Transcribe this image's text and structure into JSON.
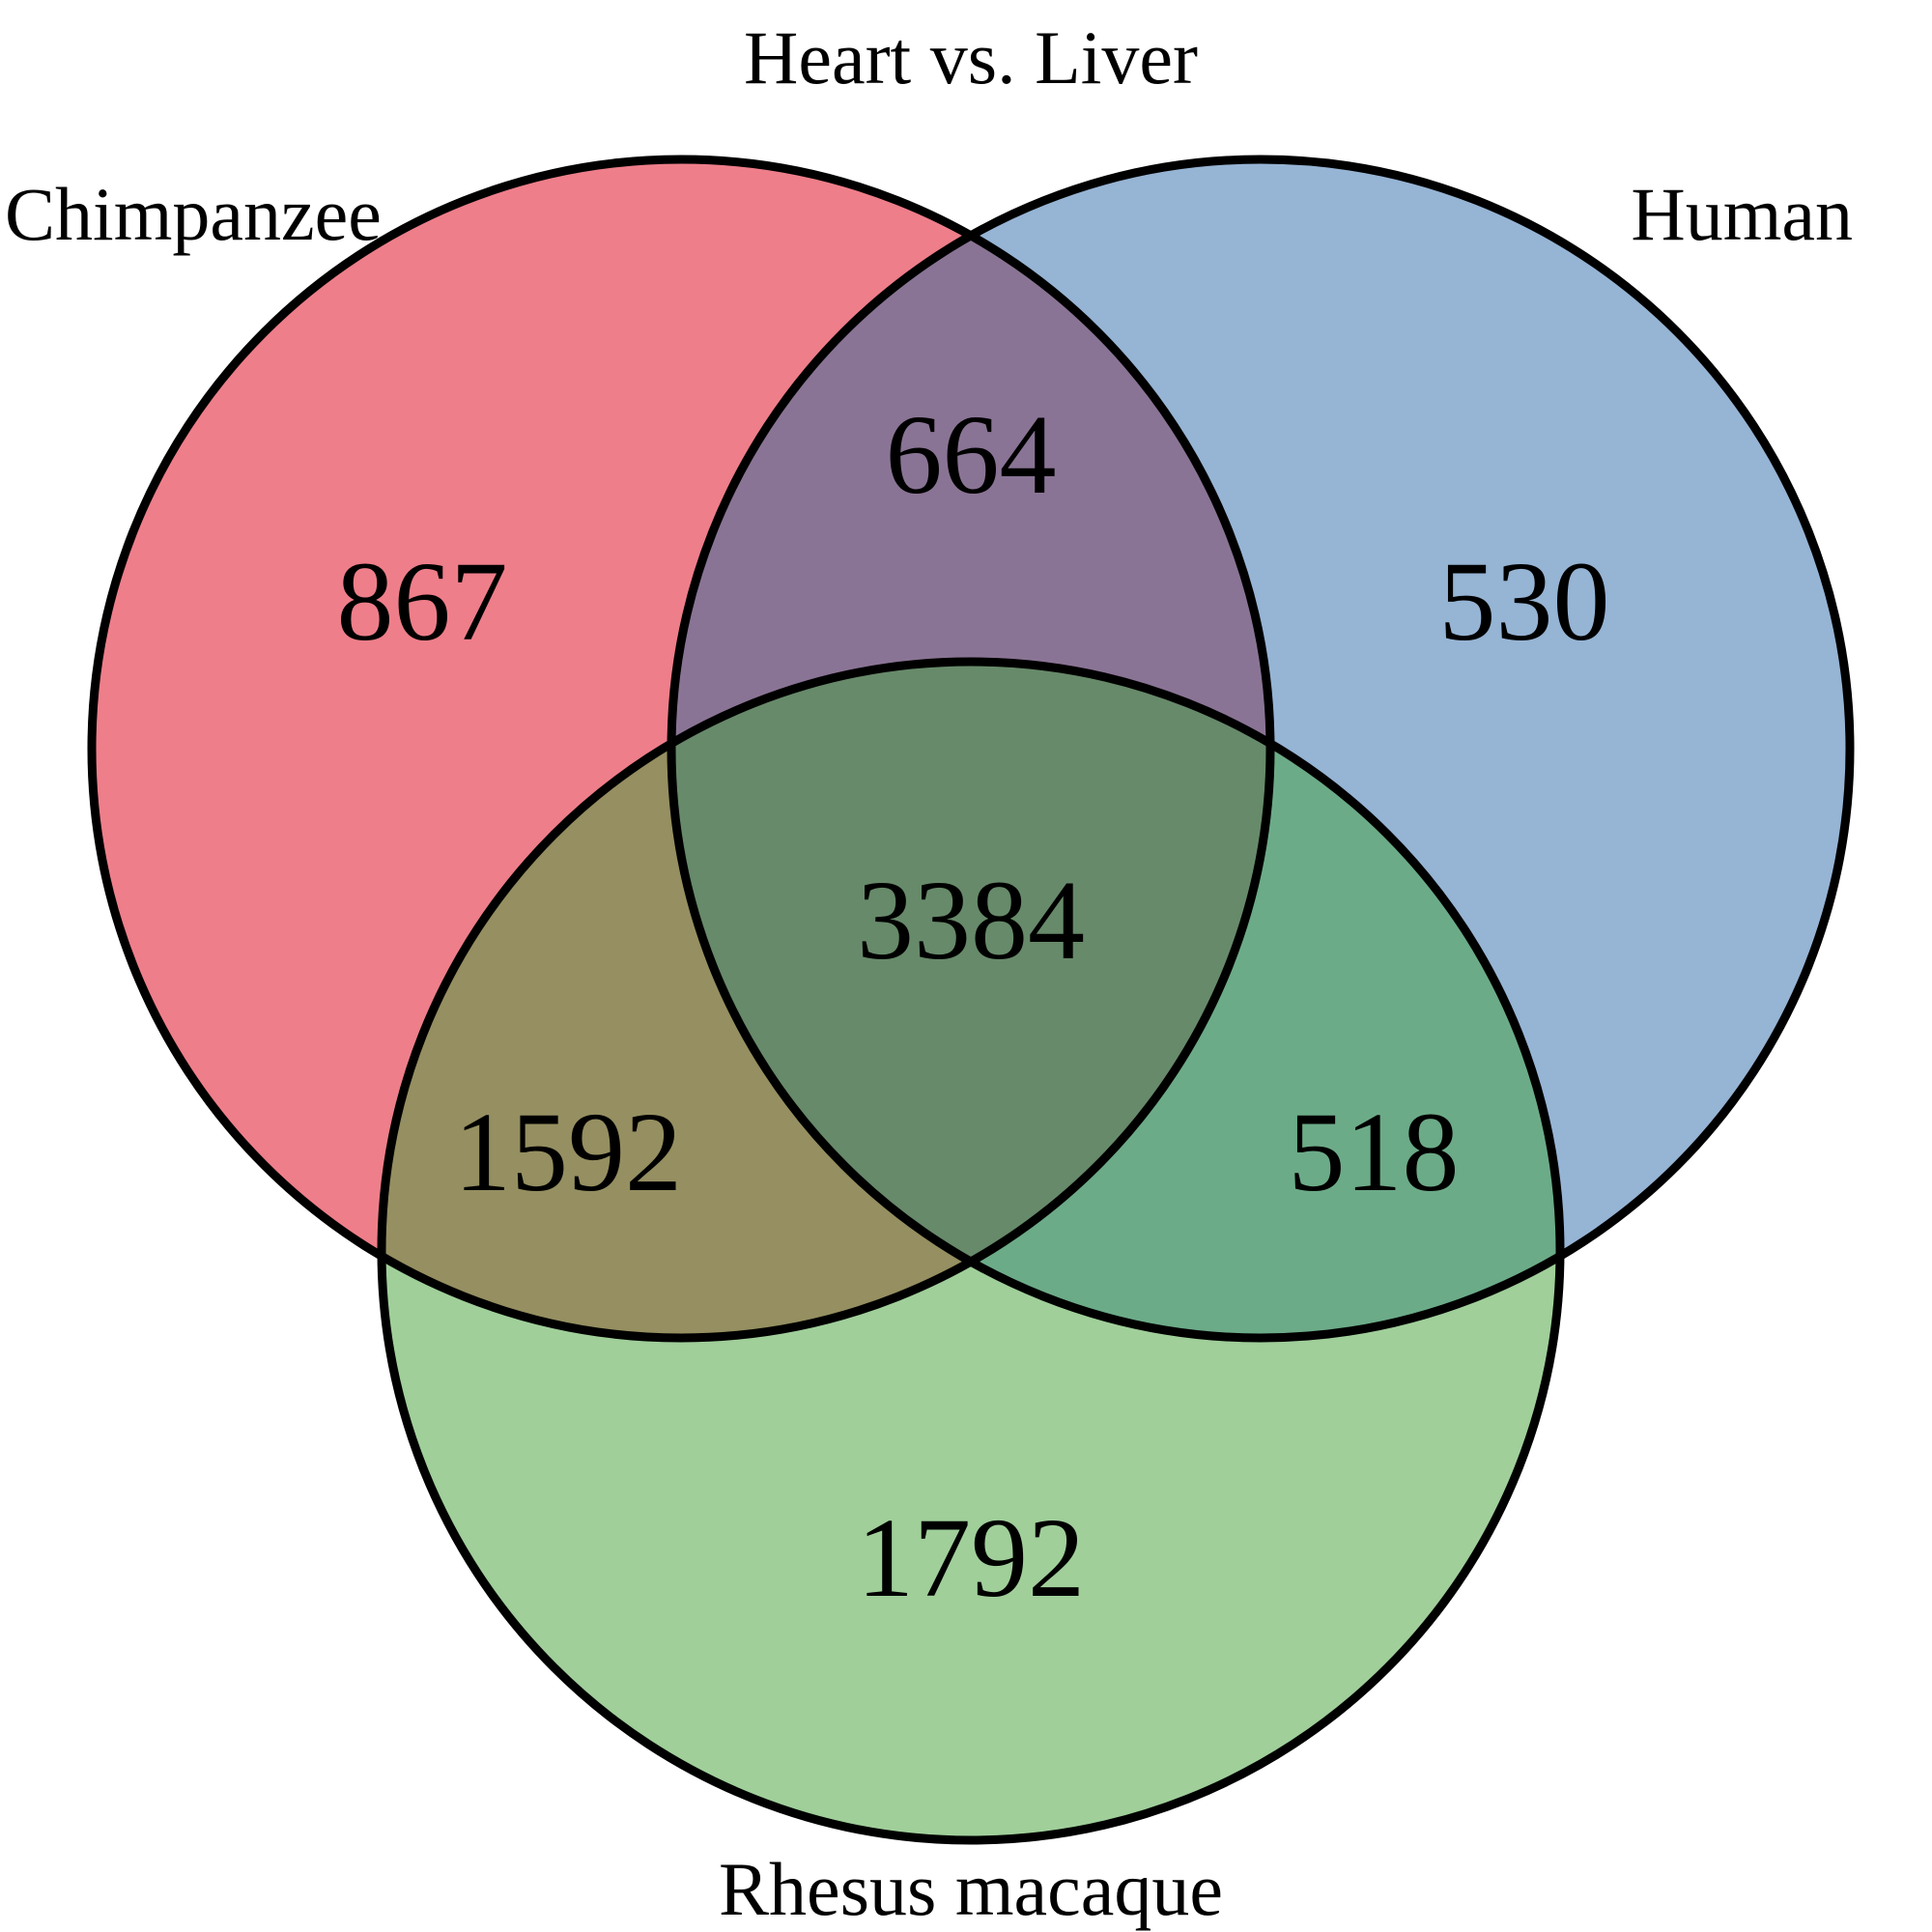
{
  "title": "Heart vs. Liver",
  "sets": {
    "chimpanzee": {
      "label": "Chimpanzee",
      "color": "#ee7e8a"
    },
    "human": {
      "label": "Human",
      "color": "#96b4d4"
    },
    "rhesus": {
      "label": "Rhesus macaque",
      "color": "#a0cf9a"
    }
  },
  "overlap_colors": {
    "chimpanzee_human": "#8a7495",
    "chimpanzee_rhesus": "#958f61",
    "human_rhesus": "#6cab88",
    "all": "#678a6a"
  },
  "regions": {
    "chimpanzee_only": "867",
    "human_only": "530",
    "rhesus_only": "1792",
    "chimpanzee_human": "664",
    "chimpanzee_rhesus": "1592",
    "human_rhesus": "518",
    "all_three": "3384"
  }
}
